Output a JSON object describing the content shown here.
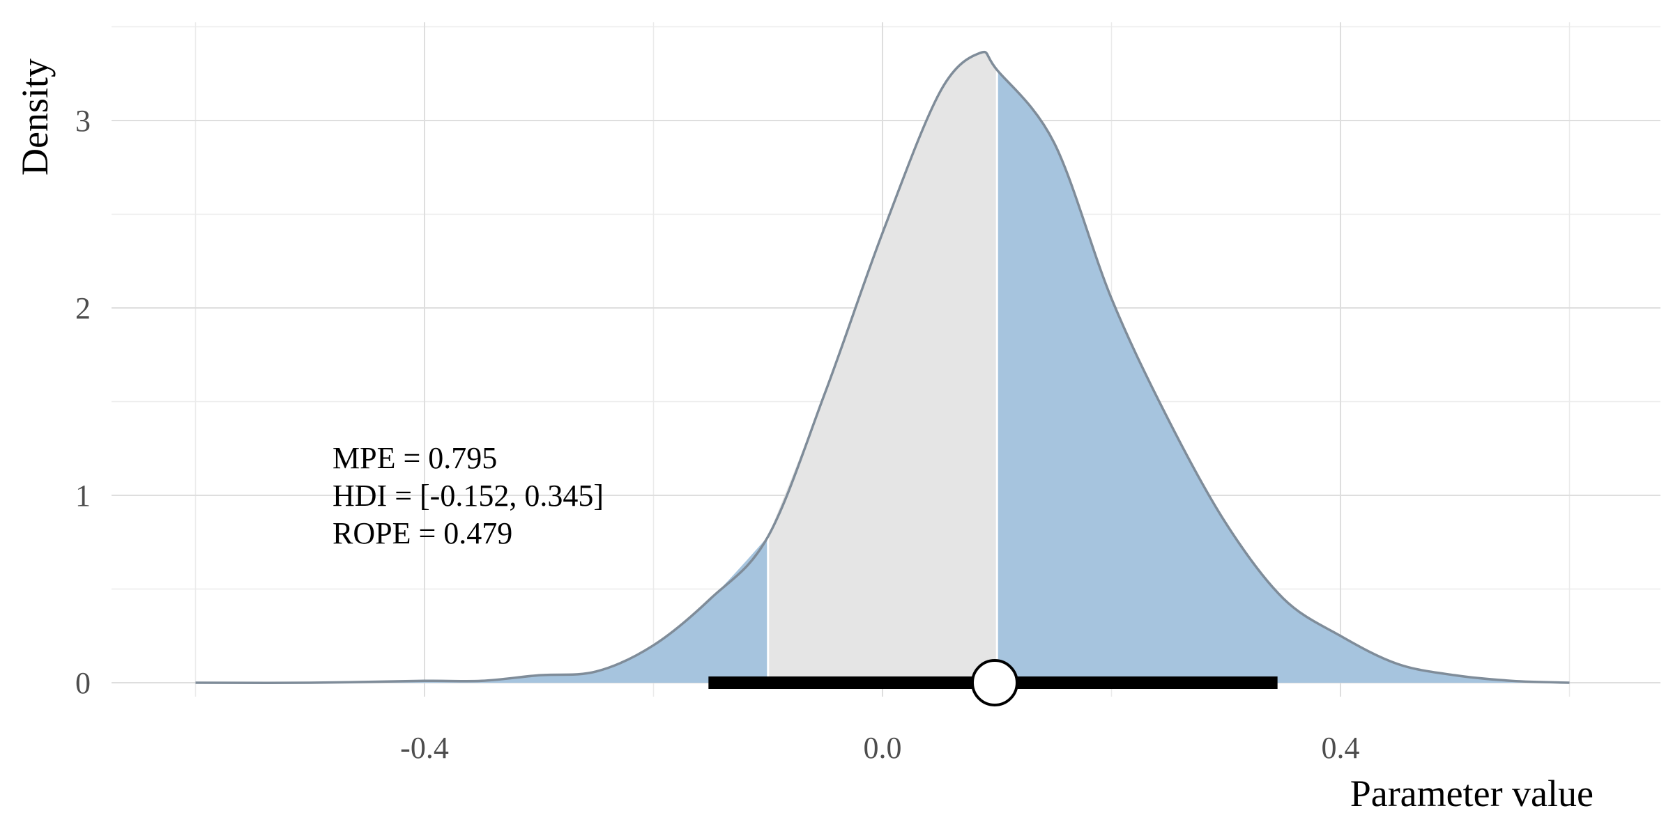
{
  "chart_data": {
    "type": "area",
    "xlabel": "Parameter value",
    "ylabel": "Density",
    "xlim": [
      -0.6,
      0.6
    ],
    "ylim": [
      0,
      3.5
    ],
    "x_ticks": [
      -0.4,
      0.0,
      0.4
    ],
    "x_tick_labels": [
      "-0.4",
      "0.0",
      "0.4"
    ],
    "y_ticks": [
      0,
      1,
      2,
      3
    ],
    "y_tick_labels": [
      "0",
      "1",
      "2",
      "3"
    ],
    "grid": true,
    "colors": {
      "tail": "#a6c4de",
      "rope_region": "#e5e5e5",
      "curve_line": "#7f8c99",
      "interval_bar": "#000000",
      "point_fill": "#ffffff"
    },
    "density": {
      "x": [
        -0.6,
        -0.5,
        -0.4,
        -0.35,
        -0.3,
        -0.25,
        -0.2,
        -0.15,
        -0.1,
        -0.05,
        0.0,
        0.05,
        0.085,
        0.1,
        0.15,
        0.2,
        0.25,
        0.3,
        0.35,
        0.4,
        0.45,
        0.5,
        0.55,
        0.6
      ],
      "y": [
        0.0,
        0.0,
        0.01,
        0.01,
        0.04,
        0.06,
        0.2,
        0.45,
        0.78,
        1.55,
        2.4,
        3.15,
        3.36,
        3.27,
        2.88,
        2.05,
        1.4,
        0.85,
        0.45,
        0.25,
        0.1,
        0.04,
        0.01,
        0.0
      ]
    },
    "rope": [
      -0.1,
      0.1
    ],
    "hdi": [
      -0.152,
      0.345
    ],
    "point_estimate": 0.098,
    "annotations": [
      "MPE = 0.795",
      "HDI = [-0.152, 0.345]",
      "ROPE = 0.479"
    ]
  }
}
